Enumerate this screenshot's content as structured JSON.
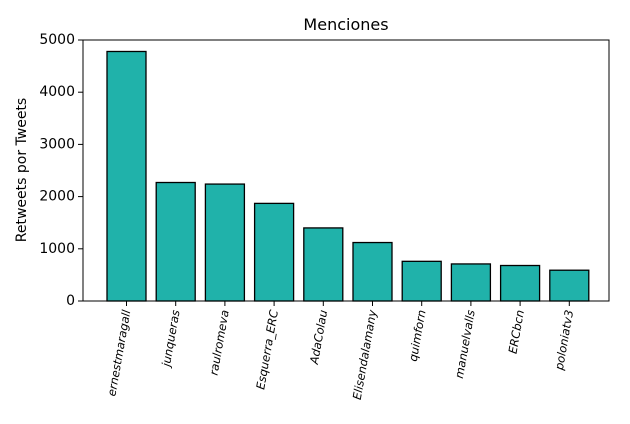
{
  "chart_data": {
    "type": "bar",
    "title": "Menciones",
    "xlabel": "",
    "ylabel": "Retweets por Tweets",
    "categories": [
      "ernestmaragall",
      "junqueras",
      "raulromeva",
      "Esquerra_ERC",
      "AdaColau",
      "Elisendalamany",
      "quimforn",
      "manuelvalls",
      "ERCbcn",
      "poloniatv3"
    ],
    "values": [
      4780,
      2270,
      2240,
      1870,
      1400,
      1120,
      760,
      710,
      680,
      590
    ],
    "ylim": [
      0,
      5000
    ],
    "yticks": [
      0,
      1000,
      2000,
      3000,
      4000,
      5000
    ],
    "grid": false,
    "legend": "none",
    "bar_color": "#20b2aa",
    "edge_color": "#000000"
  }
}
